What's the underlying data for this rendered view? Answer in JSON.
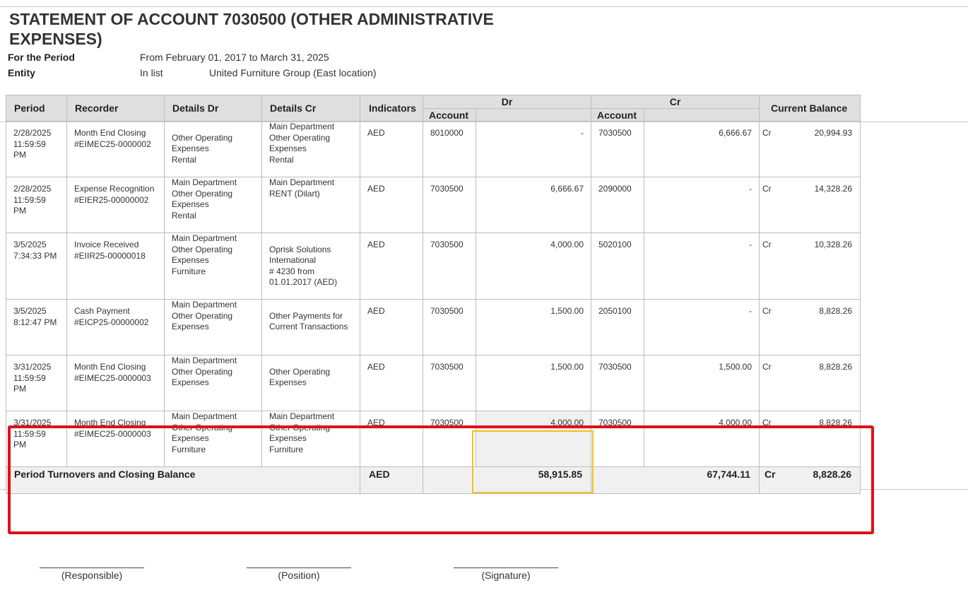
{
  "report": {
    "title": "STATEMENT OF ACCOUNT 7030500 (OTHER ADMINISTRATIVE EXPENSES)",
    "period_label": "For the Period",
    "period_value": "From February 01, 2017 to March 31, 2025",
    "entity_label": "Entity",
    "entity_mode": "In list",
    "entity_value": "United Furniture Group (East location)"
  },
  "headers": {
    "period": "Period",
    "recorder": "Recorder",
    "details_dr": "Details Dr",
    "details_cr": "Details Cr",
    "indicators": "Indicators",
    "dr": "Dr",
    "cr": "Cr",
    "account": "Account",
    "current_balance": "Current Balance"
  },
  "rows": [
    {
      "date": "2/28/2025",
      "time": "11:59:59 PM",
      "recorder": "Month End Closing",
      "doc": "#EIMEC25-0000002",
      "dr_dept": "",
      "dr_details": [
        "Other Operating",
        "Expenses",
        "Rental"
      ],
      "cr_dept": "Main Department",
      "cr_details": [
        "Other Operating",
        "Expenses",
        "Rental"
      ],
      "indicator": "AED",
      "dr_account": "8010000",
      "dr_amount": "-",
      "cr_account": "7030500",
      "cr_amount": "6,666.67",
      "bal_side": "Cr",
      "balance": "20,994.93"
    },
    {
      "date": "2/28/2025",
      "time": "11:59:59 PM",
      "recorder": "Expense Recognition",
      "doc": "#EIER25-00000002",
      "dr_dept": "Main Department",
      "dr_details": [
        "Other Operating",
        "Expenses",
        "Rental"
      ],
      "cr_dept": "Main Department",
      "cr_details": [
        "RENT (Dilart)"
      ],
      "indicator": "AED",
      "dr_account": "7030500",
      "dr_amount": "6,666.67",
      "cr_account": "2090000",
      "cr_amount": "-",
      "bal_side": "Cr",
      "balance": "14,328.26"
    },
    {
      "date": "3/5/2025",
      "time": "7:34:33 PM",
      "recorder": "Invoice Received",
      "doc": "#EIIR25-00000018",
      "dr_dept": "Main Department",
      "dr_details": [
        "Other Operating",
        "Expenses",
        "Furniture"
      ],
      "cr_dept": "",
      "cr_details": [
        "Oprisk Solutions",
        "International",
        "# 4230 from",
        "01.01.2017 (AED)"
      ],
      "indicator": "AED",
      "dr_account": "7030500",
      "dr_amount": "4,000.00",
      "cr_account": "5020100",
      "cr_amount": "-",
      "bal_side": "Cr",
      "balance": "10,328.26"
    },
    {
      "date": "3/5/2025",
      "time": "8:12:47 PM",
      "recorder": "Cash Payment",
      "doc": "#EICP25-00000002",
      "dr_dept": "Main Department",
      "dr_details": [
        "Other Operating",
        "Expenses"
      ],
      "cr_dept": "",
      "cr_details": [
        "Other Payments for",
        "Current Transactions"
      ],
      "indicator": "AED",
      "dr_account": "7030500",
      "dr_amount": "1,500.00",
      "cr_account": "2050100",
      "cr_amount": "-",
      "bal_side": "Cr",
      "balance": "8,828.26"
    },
    {
      "date": "3/31/2025",
      "time": "11:59:59 PM",
      "recorder": "Month End Closing",
      "doc": "#EIMEC25-0000003",
      "dr_dept": "Main Department",
      "dr_details": [
        "Other Operating",
        "Expenses"
      ],
      "cr_dept": "",
      "cr_details": [
        "Other Operating",
        "Expenses"
      ],
      "indicator": "AED",
      "dr_account": "7030500",
      "dr_amount": "1,500.00",
      "cr_account": "7030500",
      "cr_amount": "1,500.00",
      "bal_side": "Cr",
      "balance": "8,828.26"
    },
    {
      "date": "3/31/2025",
      "time": "11:59:59 PM",
      "recorder": "Month End Closing",
      "doc": "#EIMEC25-0000003",
      "dr_dept": "Main Department",
      "dr_details": [
        "Other Operating",
        "Expenses",
        "Furniture"
      ],
      "cr_dept": "Main Department",
      "cr_details": [
        "Other Operating",
        "Expenses",
        "Furniture"
      ],
      "indicator": "AED",
      "dr_account": "7030500",
      "dr_amount": "4,000.00",
      "cr_account": "7030500",
      "cr_amount": "4,000.00",
      "bal_side": "Cr",
      "balance": "8,828.26",
      "trailing_dr_dept": "Main Department",
      "trailing_cr_dept": "Main Department"
    }
  ],
  "totals": {
    "label": "Period Turnovers and Closing Balance",
    "indicator": "AED",
    "dr_total": "58,915.85",
    "cr_total": "67,744.11",
    "bal_side": "Cr",
    "balance": "8,828.26"
  },
  "signatures": {
    "responsible": "(Responsible)",
    "position": "(Position)",
    "signature": "(Signature)"
  },
  "highlights": {
    "red_box_color": "#e0101a",
    "yellow_box_color": "#f3c21d"
  }
}
